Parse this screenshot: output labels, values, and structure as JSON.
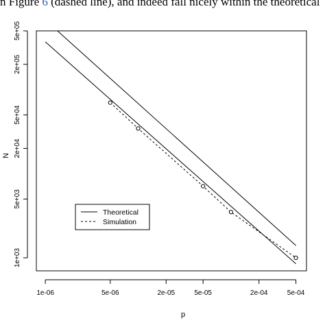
{
  "header_text": {
    "before": "n Figure ",
    "ref": "6",
    "after": " (dashed line), and indeed fall nicely within the theoretical"
  },
  "chart_data": {
    "type": "line",
    "log_x": true,
    "log_y": true,
    "xlabel": "p",
    "ylabel": "N",
    "xlim": [
      8e-07,
      0.00065
    ],
    "ylim": [
      700,
      500000
    ],
    "x_ticks": [
      {
        "value": 1e-06,
        "label": "1e-06"
      },
      {
        "value": 5e-06,
        "label": "5e-06"
      },
      {
        "value": 2e-05,
        "label": "2e-05"
      },
      {
        "value": 5e-05,
        "label": "5e-05"
      },
      {
        "value": 0.0002,
        "label": "2e-04"
      },
      {
        "value": 0.0005,
        "label": "5e-04"
      }
    ],
    "y_ticks": [
      {
        "value": 1000,
        "label": "1e+03"
      },
      {
        "value": 5000,
        "label": "5e+03"
      },
      {
        "value": 20000,
        "label": "2e+04"
      },
      {
        "value": 50000,
        "label": "5e+04"
      },
      {
        "value": 200000,
        "label": "2e+05"
      },
      {
        "value": 500000,
        "label": "5e+05"
      }
    ],
    "series": [
      {
        "name": "Theoretical",
        "style": "solid",
        "x": [
          1.35e-06,
          0.0005
        ],
        "y": [
          500000,
          1400
        ]
      },
      {
        "style": "solid",
        "x": [
          1e-06,
          0.0005
        ],
        "y": [
          370000,
          850
        ]
      },
      {
        "name": "Simulation",
        "style": "dashed",
        "markers": true,
        "x": [
          5e-06,
          1e-05,
          5e-05,
          0.0001,
          0.0005
        ],
        "y": [
          70000,
          34500,
          7100,
          3500,
          1000
        ]
      }
    ],
    "legend": {
      "position": "bottom-left",
      "entries": [
        {
          "label": "Theoretical",
          "style": "solid"
        },
        {
          "label": "Simulation",
          "style": "dashed"
        }
      ]
    },
    "grid": false,
    "colors": {
      "line": "#000000",
      "background": "#ffffff"
    }
  }
}
